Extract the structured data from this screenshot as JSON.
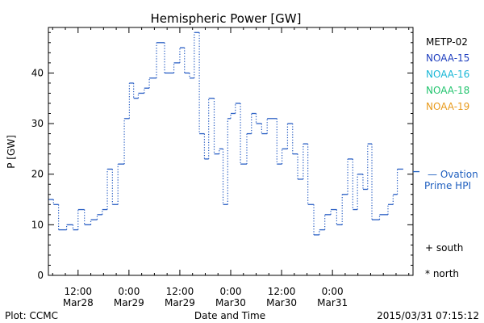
{
  "chart_data": {
    "type": "line",
    "title": "Hemispheric Power [GW]",
    "xlabel": "Date and Time",
    "ylabel": "P [GW]",
    "ylim": [
      0,
      49
    ],
    "yticks": [
      0,
      10,
      20,
      30,
      40
    ],
    "xlim_hours": [
      0,
      86
    ],
    "x_ticks": [
      {
        "hour": 7,
        "time": "12:00",
        "date": "Mar28"
      },
      {
        "hour": 19,
        "time": "0:00",
        "date": "Mar29"
      },
      {
        "hour": 31,
        "time": "12:00",
        "date": "Mar29"
      },
      {
        "hour": 43,
        "time": "0:00",
        "date": "Mar30"
      },
      {
        "hour": 55,
        "time": "12:00",
        "date": "Mar30"
      },
      {
        "hour": 67,
        "time": "0:00",
        "date": "Mar31"
      }
    ],
    "legend": [
      "METP-02",
      "NOAA-15",
      "NOAA-16",
      "NOAA-18",
      "NOAA-19"
    ],
    "legend_colors": [
      "#000000",
      "#1f3fbf",
      "#19b7d6",
      "#22c46e",
      "#e89a1b"
    ],
    "ovation_label_line1": "— Ovation",
    "ovation_label_line2": "Prime HPI",
    "ovation_value": 20.5,
    "ovation_color": "#1f5fbf",
    "south_marker": "+ south",
    "north_marker": "* north",
    "series": [
      {
        "color": "#2a5fc4",
        "x": [
          0,
          1.2,
          2.4,
          4.3,
          5.8,
          7.0,
          8.5,
          10.0,
          11.5,
          12.7,
          13.9,
          15.1,
          16.4,
          17.9,
          19.1,
          20.1,
          21.2,
          22.6,
          23.8,
          25.5,
          27.4,
          29.6,
          31.0,
          32.1,
          33.3,
          34.4,
          35.6,
          36.8,
          37.8,
          39.1,
          40.3,
          41.2,
          42.3,
          43.0,
          44.1,
          45.3,
          46.8,
          47.9,
          49.0,
          50.3,
          51.6,
          53.9,
          55.1,
          56.4,
          57.6,
          58.8,
          60.1,
          61.2,
          62.6,
          63.9,
          65.2,
          66.6,
          68.0,
          69.3,
          70.6,
          71.8,
          72.9,
          74.2,
          75.3,
          76.3,
          78.1,
          80.1,
          81.3,
          82.3
        ],
        "y": [
          15,
          14,
          9,
          10,
          9,
          13,
          10,
          11,
          12,
          13,
          21,
          14,
          22,
          31,
          38,
          35,
          36,
          37,
          39,
          46,
          40,
          42,
          45,
          40,
          39,
          48,
          28,
          23,
          35,
          24,
          25,
          14,
          31,
          32,
          34,
          22,
          28,
          32,
          30,
          28,
          31,
          22,
          25,
          30,
          24,
          19,
          26,
          14,
          8,
          9,
          12,
          13,
          10,
          16,
          23,
          13,
          20,
          17,
          26,
          11,
          12,
          14,
          16,
          21
        ]
      }
    ],
    "footer_left": "Plot: CCMC",
    "footer_right": "2015/03/31 07:15:12"
  }
}
